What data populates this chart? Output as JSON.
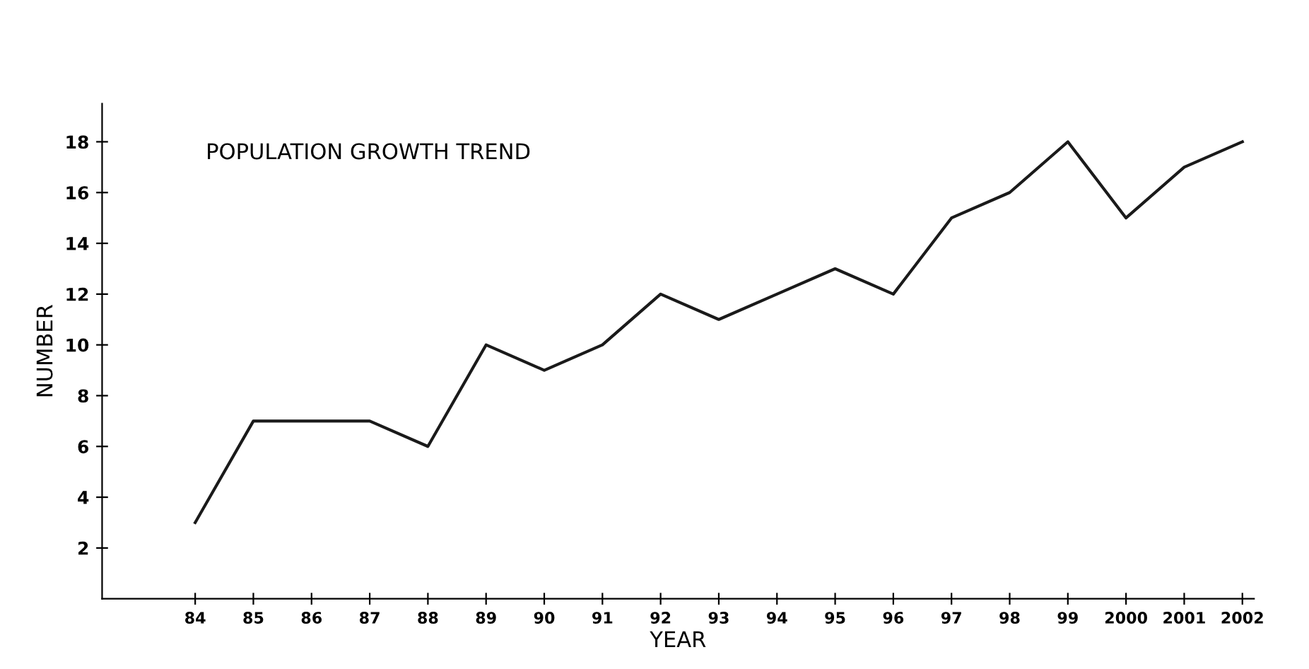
{
  "chart_data": {
    "type": "line",
    "title": "POPULATION GROWTH TREND",
    "xlabel": "YEAR",
    "ylabel": "NUMBER",
    "categories": [
      "84",
      "85",
      "86",
      "87",
      "88",
      "89",
      "90",
      "91",
      "92",
      "93",
      "94",
      "95",
      "96",
      "97",
      "98",
      "99",
      "2000",
      "2001",
      "2002"
    ],
    "series": [
      {
        "color": "#1a1a1a",
        "values": [
          3,
          7,
          7,
          7,
          6,
          10,
          9,
          10,
          12,
          11,
          12,
          13,
          12,
          15,
          16,
          18,
          15,
          17,
          18
        ]
      }
    ],
    "ylim": [
      0,
      19.5
    ],
    "yticks": [
      2,
      4,
      6,
      8,
      10,
      12,
      14,
      16,
      18
    ],
    "grid": false,
    "legend": false,
    "marker": "none",
    "line_style": "solid"
  }
}
